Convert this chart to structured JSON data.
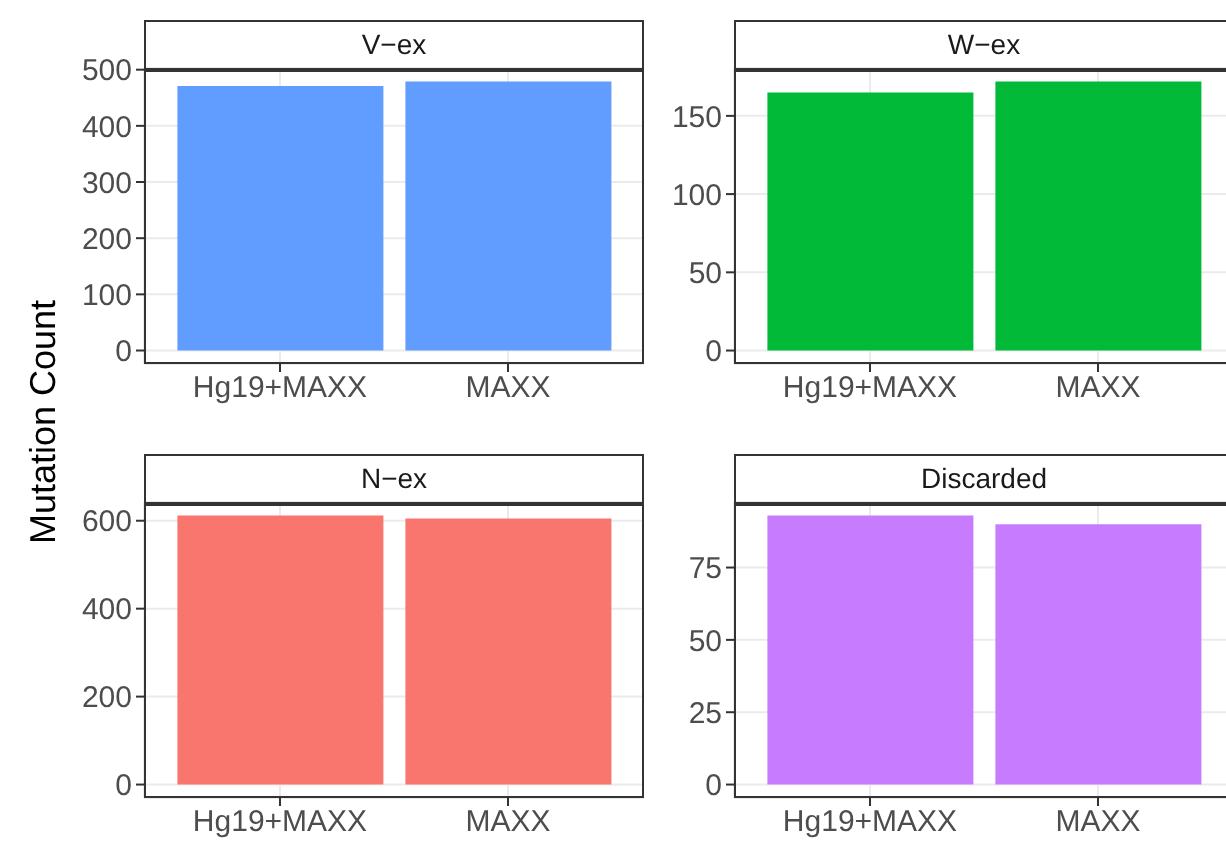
{
  "chart_data": [
    {
      "type": "bar",
      "title": "V−ex",
      "ylabel": "Mutation Count",
      "categories": [
        "Hg19+MAXX",
        "MAXX"
      ],
      "values": [
        471,
        479
      ],
      "color": "#619cff",
      "ylim": [
        -24,
        503
      ],
      "yticks": [
        0,
        100,
        200,
        300,
        400,
        500
      ],
      "grid": true
    },
    {
      "type": "bar",
      "title": "W−ex",
      "categories": [
        "Hg19+MAXX",
        "MAXX"
      ],
      "values": [
        165,
        172
      ],
      "color": "#00ba38",
      "ylim": [
        -8.6,
        180.6
      ],
      "yticks": [
        0,
        50,
        100,
        150
      ],
      "grid": true
    },
    {
      "type": "bar",
      "title": "N−ex",
      "categories": [
        "Hg19+MAXX",
        "MAXX"
      ],
      "values": [
        612,
        605
      ],
      "color": "#f8766d",
      "ylim": [
        -30.6,
        642.6
      ],
      "yticks": [
        0,
        200,
        400,
        600
      ],
      "grid": true
    },
    {
      "type": "bar",
      "title": "Discarded",
      "categories": [
        "Hg19+MAXX",
        "MAXX"
      ],
      "values": [
        93,
        90
      ],
      "color": "#c77cff",
      "ylim": [
        -4.65,
        97.65
      ],
      "yticks": [
        0,
        25,
        50,
        75
      ],
      "grid": true
    }
  ]
}
